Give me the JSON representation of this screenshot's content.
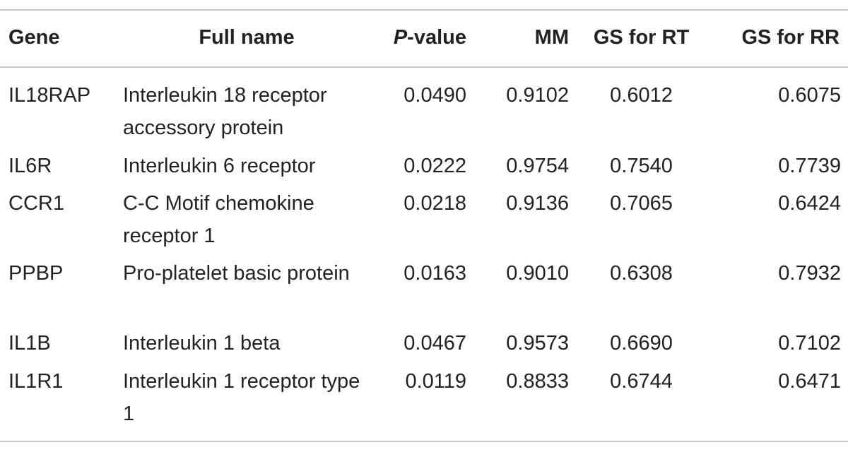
{
  "table": {
    "headers": {
      "gene": "Gene",
      "full_name": "Full name",
      "p_value_italic": "P",
      "p_value_rest": "-value",
      "mm": "MM",
      "gs_rt": "GS for RT",
      "gs_rr": "GS for RR"
    },
    "rows": [
      {
        "gene": "IL18RAP",
        "full_name": "Interleukin 18 receptor accessory protein",
        "p_value": "0.0490",
        "mm": "0.9102",
        "gs_rt": "0.6012",
        "gs_rr": "0.6075"
      },
      {
        "gene": "IL6R",
        "full_name": "Interleukin 6 receptor",
        "p_value": "0.0222",
        "mm": "0.9754",
        "gs_rt": "0.7540",
        "gs_rr": "0.7739"
      },
      {
        "gene": "CCR1",
        "full_name": "C-C Motif chemokine receptor 1",
        "p_value": "0.0218",
        "mm": "0.9136",
        "gs_rt": "0.7065",
        "gs_rr": "0.6424"
      },
      {
        "gene": "PPBP",
        "full_name": "Pro-platelet basic protein",
        "p_value": "0.0163",
        "mm": "0.9010",
        "gs_rt": "0.6308",
        "gs_rr": "0.7932"
      },
      {
        "gene": "IL1B",
        "full_name": "Interleukin 1 beta",
        "p_value": "0.0467",
        "mm": "0.9573",
        "gs_rt": "0.6690",
        "gs_rr": "0.7102"
      },
      {
        "gene": "IL1R1",
        "full_name": "Interleukin 1 receptor type 1",
        "p_value": "0.0119",
        "mm": "0.8833",
        "gs_rt": "0.6744",
        "gs_rr": "0.6471"
      }
    ]
  }
}
